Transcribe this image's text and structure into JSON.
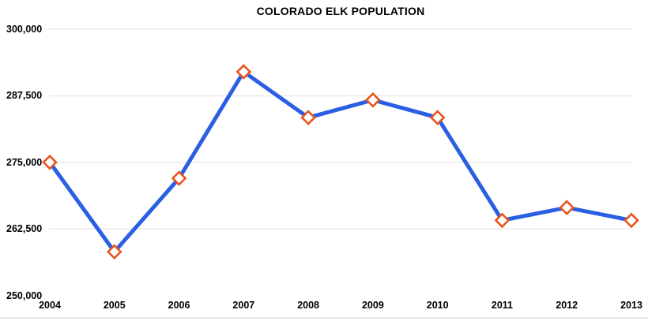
{
  "chart_data": {
    "type": "line",
    "title": "COLORADO ELK POPULATION",
    "categories": [
      "2004",
      "2005",
      "2006",
      "2007",
      "2008",
      "2009",
      "2010",
      "2011",
      "2012",
      "2013"
    ],
    "values": [
      275000,
      258200,
      272000,
      292000,
      283400,
      286700,
      283400,
      264100,
      266500,
      264100
    ],
    "xlabel": "",
    "ylabel": "",
    "ylim": [
      250000,
      300000
    ],
    "y_tick_interval": 12500,
    "y_tick_values": [
      300000,
      287500,
      275000,
      262500,
      250000
    ],
    "y_tick_labels": [
      "300,000",
      "287,500",
      "275,000",
      "262,500",
      "250,000"
    ],
    "gridline_values": [
      300000,
      287500,
      275000,
      262500
    ],
    "grid": "horizontal-only",
    "legend": "none",
    "marker": "diamond",
    "colors": {
      "line": "#2b5fe3",
      "marker_stroke": "#e8551c",
      "marker_fill": "#ffffff",
      "gridline": "#ececec",
      "text": "#000000",
      "background": "#ffffff"
    }
  }
}
